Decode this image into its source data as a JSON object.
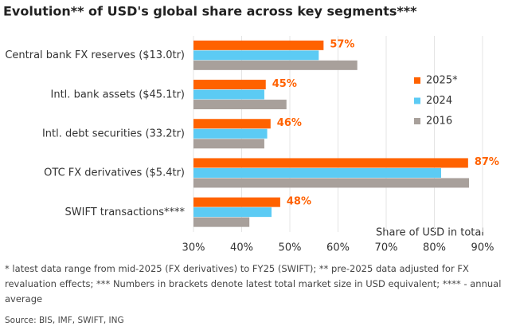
{
  "chart_data": {
    "type": "hbar",
    "title": "Evolution** of USD's global share across key segments***",
    "categories": [
      "Central bank FX reserves ($13.0tr)",
      "Intl. bank assets ($45.1tr)",
      "Intl. debt securities (33.2tr)",
      "OTC FX derivatives ($5.4tr)",
      "SWIFT transactions****"
    ],
    "series": [
      {
        "name": "2025*",
        "color": "#ff6200",
        "values": [
          57,
          45,
          46,
          87,
          48
        ],
        "value_labels": [
          "57%",
          "45%",
          "46%",
          "87%",
          "48%"
        ]
      },
      {
        "name": "2024",
        "color": "#5ccbf4",
        "values": [
          56,
          44.7,
          45.3,
          81.4,
          46.2
        ]
      },
      {
        "name": "2016",
        "color": "#a8a09b",
        "values": [
          64,
          49.3,
          44.7,
          87.2,
          41.6
        ]
      }
    ],
    "xlabel": "Share of USD in total",
    "xlim": [
      30,
      90
    ],
    "xticks": [
      {
        "value": 30,
        "label": "30%"
      },
      {
        "value": 40,
        "label": "40%"
      },
      {
        "value": 50,
        "label": "50%"
      },
      {
        "value": 60,
        "label": "60%"
      },
      {
        "value": 70,
        "label": "70%"
      },
      {
        "value": 80,
        "label": "80%"
      },
      {
        "value": 90,
        "label": "90%"
      }
    ],
    "grid": true,
    "legend": "right",
    "footnote": "* latest data range from mid-2025 (FX derivatives) to FY25 (SWIFT); ** pre-2025 data adjusted for FX revaluation effects; *** Numbers in brackets denote latest total market size in USD equivalent; **** - annual average",
    "source": "Source: BIS, IMF, SWIFT, ING"
  }
}
